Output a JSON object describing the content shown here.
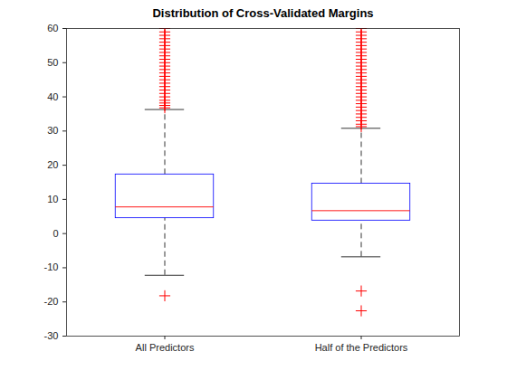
{
  "chart_data": {
    "type": "box",
    "title": "Distribution of Cross-Validated Margins",
    "categories": [
      "All Predictors",
      "Half of the Predictors"
    ],
    "stats": {
      "whisker_low": [
        -12.2,
        -6.8
      ],
      "q1": [
        4.5,
        3.8
      ],
      "median": [
        7.8,
        6.7
      ],
      "q3": [
        17.3,
        14.6
      ],
      "whisker_high": [
        36.3,
        30.8
      ]
    },
    "outliers": [
      [
        -18.2,
        36.8,
        37.5,
        38.2,
        39,
        40,
        41,
        42,
        43,
        44,
        45,
        46,
        47,
        48,
        49,
        50,
        51,
        52,
        53,
        54,
        55,
        56,
        57,
        58,
        59,
        60
      ],
      [
        -16.8,
        -22.6,
        31.3,
        32,
        33,
        34,
        35,
        36,
        37,
        38,
        39,
        40,
        41,
        42,
        43,
        44,
        45,
        46,
        47,
        48,
        49,
        50,
        51,
        52,
        53,
        54,
        55,
        56,
        57,
        58,
        59,
        60
      ]
    ],
    "ylim": [
      -30,
      60
    ],
    "yticks": [
      -30,
      -20,
      -10,
      0,
      10,
      20,
      30,
      40,
      50,
      60
    ],
    "grid": false
  }
}
